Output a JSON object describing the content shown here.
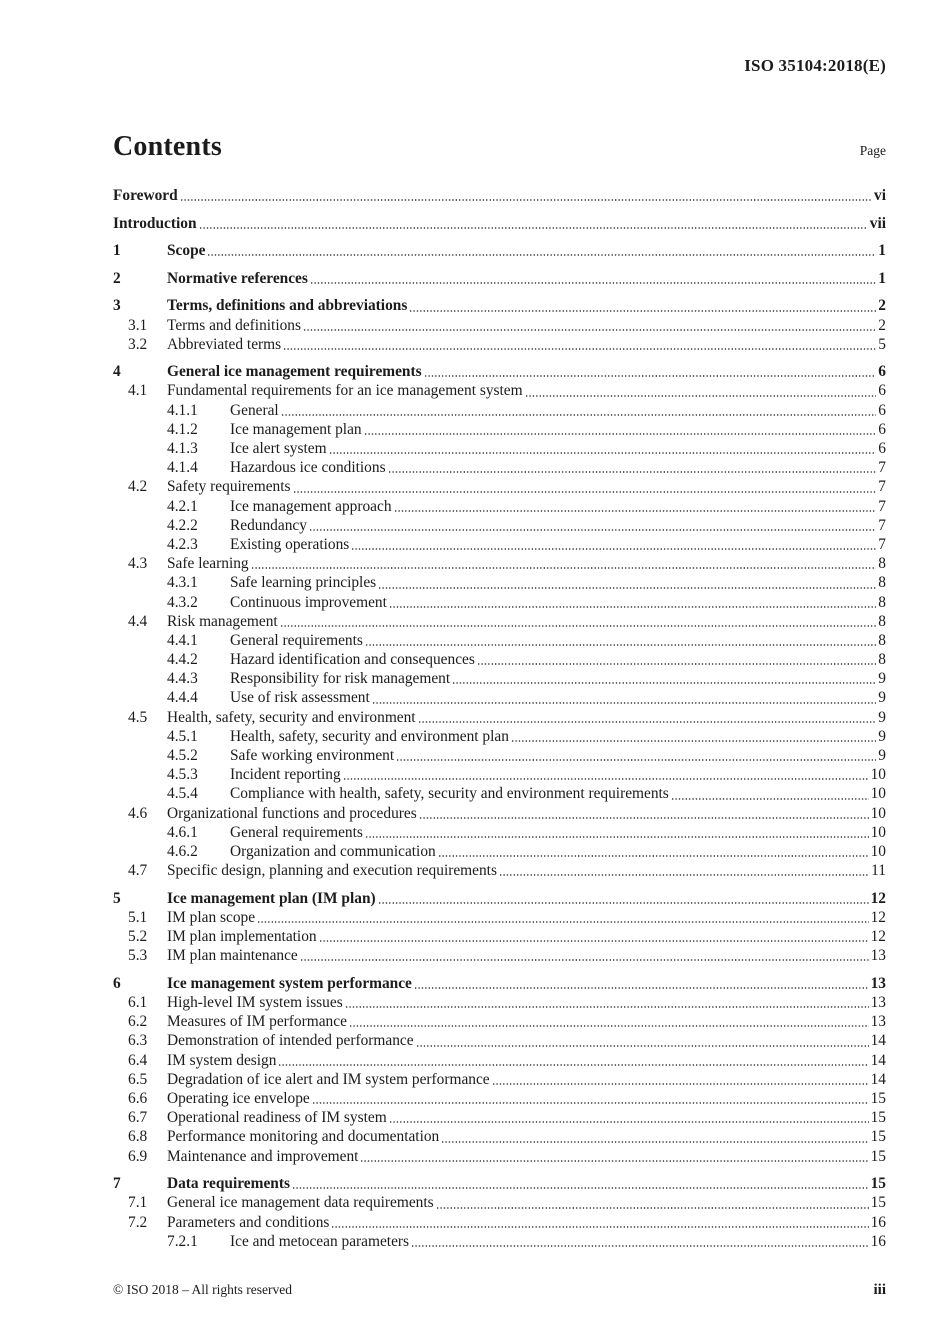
{
  "header": {
    "doc_ref": "ISO 35104:2018(E)"
  },
  "title": {
    "text": "Contents",
    "page_col_label": "Page"
  },
  "toc": [
    {
      "level": 0,
      "num": "",
      "label": "Foreword",
      "page": "vi",
      "bold": true,
      "group": false
    },
    {
      "level": 0,
      "num": "",
      "label": "Introduction",
      "page": "vii",
      "bold": true,
      "group": true
    },
    {
      "level": 0,
      "num": "1",
      "label": "Scope",
      "page": "1",
      "bold": true,
      "group": true
    },
    {
      "level": 0,
      "num": "2",
      "label": "Normative references",
      "page": "1",
      "bold": true,
      "group": true
    },
    {
      "level": 0,
      "num": "3",
      "label": "Terms, definitions and abbreviations",
      "page": "2",
      "bold": true,
      "group": true
    },
    {
      "level": 1,
      "num": "3.1",
      "label": "Terms and definitions",
      "page": "2",
      "bold": false,
      "group": false
    },
    {
      "level": 1,
      "num": "3.2",
      "label": "Abbreviated terms",
      "page": "5",
      "bold": false,
      "group": false
    },
    {
      "level": 0,
      "num": "4",
      "label": "General ice management requirements",
      "page": "6",
      "bold": true,
      "group": true
    },
    {
      "level": 1,
      "num": "4.1",
      "label": "Fundamental requirements for an ice management system",
      "page": "6",
      "bold": false,
      "group": false
    },
    {
      "level": 2,
      "num": "4.1.1",
      "label": "General",
      "page": "6",
      "bold": false,
      "group": false
    },
    {
      "level": 2,
      "num": "4.1.2",
      "label": "Ice management plan",
      "page": "6",
      "bold": false,
      "group": false
    },
    {
      "level": 2,
      "num": "4.1.3",
      "label": "Ice alert system",
      "page": "6",
      "bold": false,
      "group": false
    },
    {
      "level": 2,
      "num": "4.1.4",
      "label": "Hazardous ice conditions",
      "page": "7",
      "bold": false,
      "group": false
    },
    {
      "level": 1,
      "num": "4.2",
      "label": "Safety requirements",
      "page": "7",
      "bold": false,
      "group": false
    },
    {
      "level": 2,
      "num": "4.2.1",
      "label": "Ice management approach",
      "page": "7",
      "bold": false,
      "group": false
    },
    {
      "level": 2,
      "num": "4.2.2",
      "label": "Redundancy",
      "page": "7",
      "bold": false,
      "group": false
    },
    {
      "level": 2,
      "num": "4.2.3",
      "label": "Existing operations",
      "page": "7",
      "bold": false,
      "group": false
    },
    {
      "level": 1,
      "num": "4.3",
      "label": "Safe learning",
      "page": "8",
      "bold": false,
      "group": false
    },
    {
      "level": 2,
      "num": "4.3.1",
      "label": "Safe learning principles",
      "page": "8",
      "bold": false,
      "group": false
    },
    {
      "level": 2,
      "num": "4.3.2",
      "label": "Continuous improvement",
      "page": "8",
      "bold": false,
      "group": false
    },
    {
      "level": 1,
      "num": "4.4",
      "label": "Risk management",
      "page": "8",
      "bold": false,
      "group": false
    },
    {
      "level": 2,
      "num": "4.4.1",
      "label": "General requirements",
      "page": "8",
      "bold": false,
      "group": false
    },
    {
      "level": 2,
      "num": "4.4.2",
      "label": "Hazard identification and consequences",
      "page": "8",
      "bold": false,
      "group": false
    },
    {
      "level": 2,
      "num": "4.4.3",
      "label": "Responsibility for risk management",
      "page": "9",
      "bold": false,
      "group": false
    },
    {
      "level": 2,
      "num": "4.4.4",
      "label": "Use of risk assessment",
      "page": "9",
      "bold": false,
      "group": false
    },
    {
      "level": 1,
      "num": "4.5",
      "label": "Health, safety, security and environment",
      "page": "9",
      "bold": false,
      "group": false
    },
    {
      "level": 2,
      "num": "4.5.1",
      "label": "Health, safety, security and environment plan",
      "page": "9",
      "bold": false,
      "group": false
    },
    {
      "level": 2,
      "num": "4.5.2",
      "label": "Safe working environment",
      "page": "9",
      "bold": false,
      "group": false
    },
    {
      "level": 2,
      "num": "4.5.3",
      "label": "Incident reporting",
      "page": "10",
      "bold": false,
      "group": false
    },
    {
      "level": 2,
      "num": "4.5.4",
      "label": "Compliance with health, safety, security and environment requirements",
      "page": "10",
      "bold": false,
      "group": false
    },
    {
      "level": 1,
      "num": "4.6",
      "label": "Organizational functions and procedures",
      "page": "10",
      "bold": false,
      "group": false
    },
    {
      "level": 2,
      "num": "4.6.1",
      "label": "General requirements",
      "page": "10",
      "bold": false,
      "group": false
    },
    {
      "level": 2,
      "num": "4.6.2",
      "label": "Organization and communication",
      "page": "10",
      "bold": false,
      "group": false
    },
    {
      "level": 1,
      "num": "4.7",
      "label": "Specific design, planning and execution requirements",
      "page": "11",
      "bold": false,
      "group": false
    },
    {
      "level": 0,
      "num": "5",
      "label": "Ice management plan (IM plan)",
      "page": "12",
      "bold": true,
      "group": true
    },
    {
      "level": 1,
      "num": "5.1",
      "label": "IM plan scope",
      "page": "12",
      "bold": false,
      "group": false
    },
    {
      "level": 1,
      "num": "5.2",
      "label": "IM plan implementation",
      "page": "12",
      "bold": false,
      "group": false
    },
    {
      "level": 1,
      "num": "5.3",
      "label": "IM plan maintenance",
      "page": "13",
      "bold": false,
      "group": false
    },
    {
      "level": 0,
      "num": "6",
      "label": "Ice management system performance",
      "page": "13",
      "bold": true,
      "group": true
    },
    {
      "level": 1,
      "num": "6.1",
      "label": "High-level IM system issues",
      "page": "13",
      "bold": false,
      "group": false
    },
    {
      "level": 1,
      "num": "6.2",
      "label": "Measures of IM performance",
      "page": "13",
      "bold": false,
      "group": false
    },
    {
      "level": 1,
      "num": "6.3",
      "label": "Demonstration of intended performance",
      "page": "14",
      "bold": false,
      "group": false
    },
    {
      "level": 1,
      "num": "6.4",
      "label": "IM system design",
      "page": "14",
      "bold": false,
      "group": false
    },
    {
      "level": 1,
      "num": "6.5",
      "label": "Degradation of ice alert and IM system performance",
      "page": "14",
      "bold": false,
      "group": false
    },
    {
      "level": 1,
      "num": "6.6",
      "label": "Operating ice envelope",
      "page": "15",
      "bold": false,
      "group": false
    },
    {
      "level": 1,
      "num": "6.7",
      "label": "Operational readiness of IM system",
      "page": "15",
      "bold": false,
      "group": false
    },
    {
      "level": 1,
      "num": "6.8",
      "label": "Performance monitoring and documentation",
      "page": "15",
      "bold": false,
      "group": false
    },
    {
      "level": 1,
      "num": "6.9",
      "label": "Maintenance and improvement",
      "page": "15",
      "bold": false,
      "group": false
    },
    {
      "level": 0,
      "num": "7",
      "label": "Data requirements",
      "page": "15",
      "bold": true,
      "group": true
    },
    {
      "level": 1,
      "num": "7.1",
      "label": "General ice management data requirements",
      "page": "15",
      "bold": false,
      "group": false
    },
    {
      "level": 1,
      "num": "7.2",
      "label": "Parameters and conditions",
      "page": "16",
      "bold": false,
      "group": false
    },
    {
      "level": 2,
      "num": "7.2.1",
      "label": "Ice and metocean parameters",
      "page": "16",
      "bold": false,
      "group": false
    }
  ],
  "footer": {
    "copyright": "© ISO 2018 – All rights reserved",
    "page_number": "iii"
  },
  "colors": {
    "text": "#1c1c1c",
    "leader_dot": "#3d3d3d",
    "background": "#ffffff"
  }
}
